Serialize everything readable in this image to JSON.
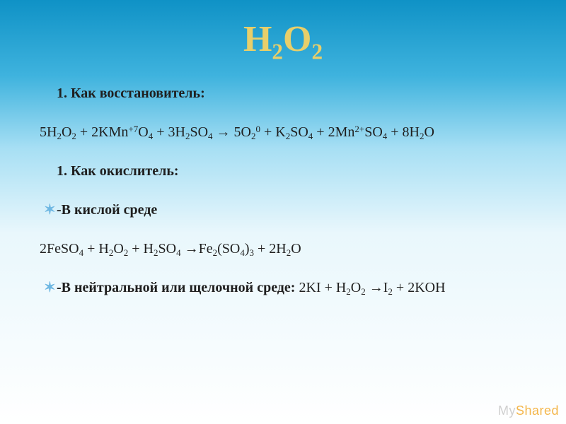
{
  "title": {
    "formula": "H2O2",
    "base": "H",
    "sub1": "2",
    "mid": "O",
    "sub2": "2",
    "color": "#e8cf6a",
    "fontsize": 52
  },
  "background": {
    "gradient_stops": [
      "#0f92c6",
      "#3fb3de",
      "#a7dff4",
      "#e9f7fc",
      "#ffffff"
    ]
  },
  "body": {
    "fontsize": 20,
    "color": "#1f1f1f",
    "bullet_color": "#6eb7e2"
  },
  "lines": {
    "l1_num": "1.",
    "l1_text": "Как восстановитель:",
    "eq1": "5Н2О2 + 2KMn+7O4 + 3H2SO4 → 5О20 + K2SO4 + 2Mn2+SO4 + 8H2O",
    "l2_num": "1.",
    "l2_text": "Как окислитель:",
    "l3_bul": "✶",
    "l3_text": "-В кислой среде",
    "eq2": "2FeSO4 + H2O2 + H2SO4 →Fe2(SO4)3 + 2H2O",
    "l4_bul": "✶",
    "l4_text_a": "-В нейтральной или щелочной среде: ",
    "eq3": "2KI + H2O2 →I2 + 2KOH"
  },
  "watermark": {
    "part1": "My",
    "part2": "Shared",
    "color1": "#cfcfcf",
    "color2": "#f4b64a"
  }
}
